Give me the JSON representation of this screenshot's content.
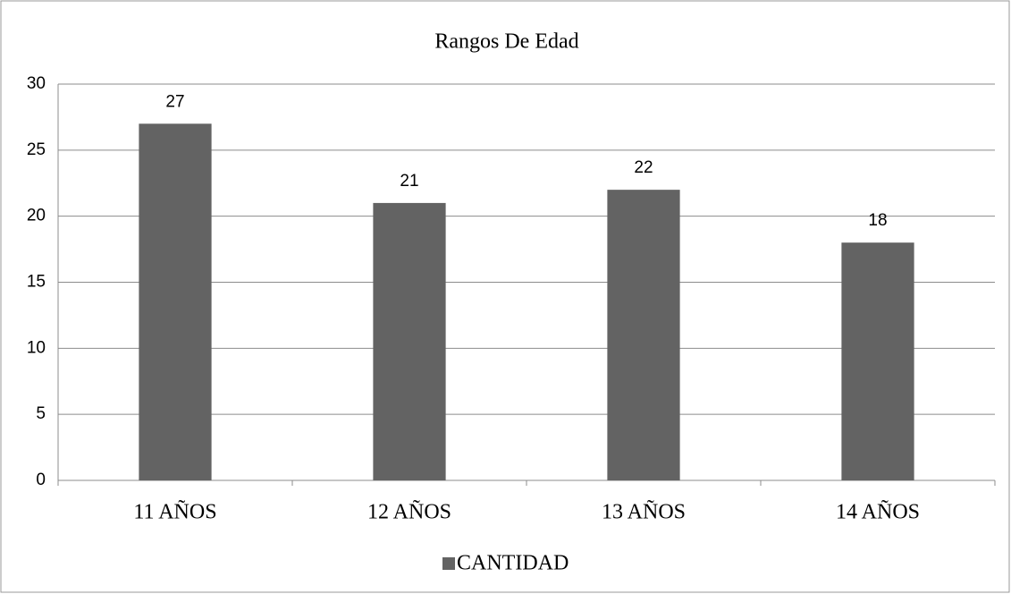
{
  "chart_data": {
    "type": "bar",
    "title": "Rangos De Edad",
    "categories": [
      "11 AÑOS",
      "12 AÑOS",
      "13 AÑOS",
      "14 AÑOS"
    ],
    "series": [
      {
        "name": "CANTIDAD",
        "color": "#636363",
        "values": [
          27,
          21,
          22,
          18
        ]
      }
    ],
    "ylim": [
      0,
      30
    ],
    "yticks": [
      0,
      5,
      10,
      15,
      20,
      25,
      30
    ],
    "grid": true,
    "legend": "bottom",
    "data_labels": true
  }
}
